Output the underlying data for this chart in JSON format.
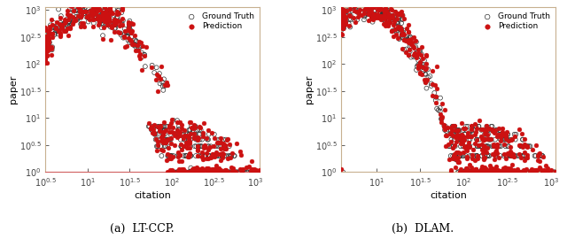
{
  "title_a": "(a)  LT-CCP.",
  "title_b": "(b)  DLAM.",
  "xlabel": "citation",
  "ylabel": "paper",
  "legend_gt": "Ground Truth",
  "legend_pred": "Prediction",
  "gt_color": "#333333",
  "pred_color": "#cc1111",
  "gt_markersize": 3.5,
  "pred_markersize": 3.5,
  "background_color": "#ffffff",
  "spine_color_side": "#c8b090",
  "spine_color_bottom_a": "#d06060",
  "spine_color_bottom_b": "#c8b090",
  "figsize": [
    6.4,
    2.7
  ],
  "dpi": 100,
  "xlim_a": [
    0.5,
    3.05
  ],
  "xlim_b": [
    0.6,
    3.05
  ],
  "ylim": [
    0.0,
    3.05
  ],
  "xticks_a": [
    0.5,
    1.0,
    1.5,
    2.0,
    2.5,
    3.0
  ],
  "xticks_b": [
    1.0,
    1.5,
    2.0,
    2.5,
    3.0
  ],
  "yticks": [
    0.0,
    0.5,
    1.0,
    1.5,
    2.0,
    2.5,
    3.0
  ]
}
